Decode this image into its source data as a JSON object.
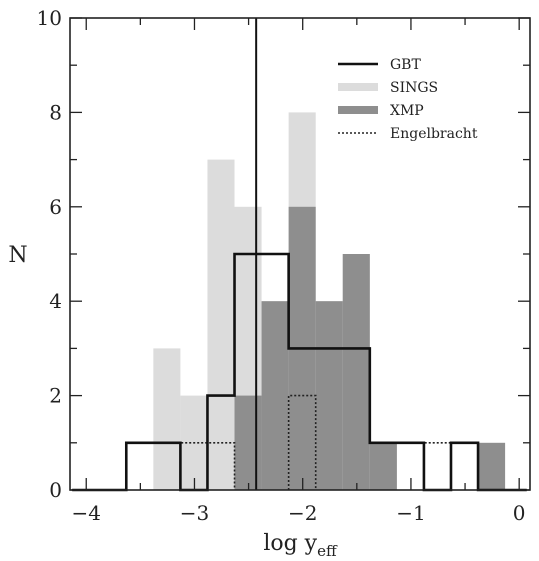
{
  "chart_data": {
    "type": "histogram",
    "xlabel": "log y",
    "xlabel_sub": "eff",
    "ylabel": "N",
    "xlim": [
      -4.15,
      0.1
    ],
    "ylim": [
      0,
      10
    ],
    "x_ticks": [
      -4,
      -3,
      -2,
      -1,
      0
    ],
    "x_tick_labels": [
      "−4",
      "−3",
      "−2",
      "−1",
      "0"
    ],
    "y_ticks": [
      0,
      2,
      4,
      6,
      8,
      10
    ],
    "y_tick_labels": [
      "0",
      "2",
      "4",
      "6",
      "8",
      "10"
    ],
    "legend_position": "top-right",
    "series": [
      {
        "name": "SINGS",
        "style": "fill",
        "color": "#dcdcdc",
        "bins": [
          {
            "x0": -3.38,
            "x1": -3.13,
            "count": 3
          },
          {
            "x0": -3.13,
            "x1": -2.88,
            "count": 2
          },
          {
            "x0": -2.88,
            "x1": -2.63,
            "count": 7
          },
          {
            "x0": -2.63,
            "x1": -2.38,
            "count": 6
          },
          {
            "x0": -2.38,
            "x1": -2.13,
            "count": 4
          },
          {
            "x0": -2.13,
            "x1": -1.88,
            "count": 8
          },
          {
            "x0": -1.88,
            "x1": -1.63,
            "count": 4
          },
          {
            "x0": -1.63,
            "x1": -1.38,
            "count": 5
          },
          {
            "x0": -1.38,
            "x1": -1.13,
            "count": 1
          }
        ]
      },
      {
        "name": "XMP",
        "style": "fill",
        "color": "#8e8e8e",
        "bins": [
          {
            "x0": -2.63,
            "x1": -2.38,
            "count": 2
          },
          {
            "x0": -2.38,
            "x1": -2.13,
            "count": 4
          },
          {
            "x0": -2.13,
            "x1": -1.88,
            "count": 6
          },
          {
            "x0": -1.88,
            "x1": -1.63,
            "count": 4
          },
          {
            "x0": -1.63,
            "x1": -1.38,
            "count": 5
          },
          {
            "x0": -1.38,
            "x1": -1.13,
            "count": 1
          },
          {
            "x0": -0.38,
            "x1": -0.13,
            "count": 1
          }
        ]
      },
      {
        "name": "Engelbracht",
        "style": "dotted",
        "color": "#222222",
        "bins": [
          {
            "x0": -3.13,
            "x1": -2.63,
            "count": 1
          },
          {
            "x0": -2.13,
            "x1": -1.88,
            "count": 2
          },
          {
            "x0": -0.88,
            "x1": -0.63,
            "count": 1
          }
        ]
      },
      {
        "name": "GBT",
        "style": "step",
        "color": "#111111",
        "bins": [
          {
            "x0": -4.13,
            "x1": -3.63,
            "count": 0
          },
          {
            "x0": -3.63,
            "x1": -3.13,
            "count": 1
          },
          {
            "x0": -3.13,
            "x1": -2.88,
            "count": 0
          },
          {
            "x0": -2.88,
            "x1": -2.63,
            "count": 2
          },
          {
            "x0": -2.63,
            "x1": -2.13,
            "count": 5
          },
          {
            "x0": -2.13,
            "x1": -1.38,
            "count": 3
          },
          {
            "x0": -1.38,
            "x1": -0.88,
            "count": 1
          },
          {
            "x0": -0.88,
            "x1": -0.63,
            "count": 0
          },
          {
            "x0": -0.63,
            "x1": -0.38,
            "count": 1
          },
          {
            "x0": -0.38,
            "x1": 0.07,
            "count": 0
          }
        ]
      }
    ],
    "vertical_line": {
      "x": -2.43,
      "color": "#111111"
    }
  }
}
